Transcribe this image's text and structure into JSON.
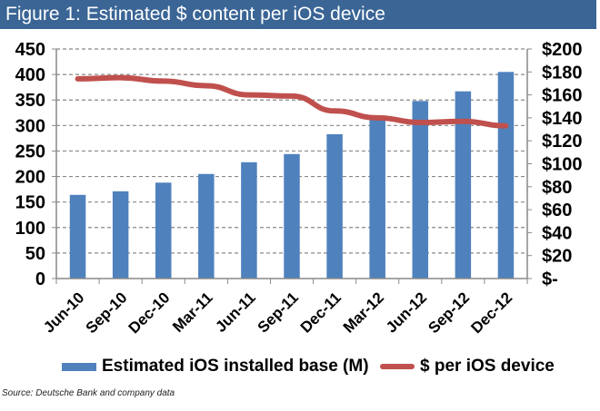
{
  "title": "Figure 1: Estimated $ content per iOS device",
  "source": "Source: Deutsche Bank and company data",
  "colors": {
    "title_bg": "#3a6595",
    "bar": "#4f81bd",
    "line": "#c0504d",
    "grid": "#888888"
  },
  "chart_data": {
    "type": "bar+line",
    "title": "Figure 1: Estimated $ content per iOS device",
    "categories": [
      "Jun-10",
      "Sep-10",
      "Dec-10",
      "Mar-11",
      "Jun-11",
      "Sep-11",
      "Dec-11",
      "Mar-12",
      "Jun-12",
      "Sep-12",
      "Dec-12"
    ],
    "series": [
      {
        "name": "Estimated iOS installed base (M)",
        "type": "bar",
        "axis": "left",
        "values": [
          164,
          171,
          188,
          205,
          228,
          244,
          283,
          315,
          348,
          367,
          405
        ]
      },
      {
        "name": "$ per iOS device",
        "type": "line",
        "axis": "right",
        "values": [
          174,
          175,
          172,
          168,
          160,
          159,
          146,
          140,
          136,
          137,
          133
        ]
      }
    ],
    "left_axis": {
      "ylim": [
        0,
        450
      ],
      "ticks": [
        "0",
        "50",
        "100",
        "150",
        "200",
        "250",
        "300",
        "350",
        "400",
        "450"
      ],
      "tick_values": [
        0,
        50,
        100,
        150,
        200,
        250,
        300,
        350,
        400,
        450
      ]
    },
    "right_axis": {
      "ylim": [
        0,
        200
      ],
      "ticks": [
        "$-",
        "$20",
        "$40",
        "$60",
        "$80",
        "$100",
        "$120",
        "$140",
        "$160",
        "$180",
        "$200"
      ],
      "tick_values": [
        0,
        20,
        40,
        60,
        80,
        100,
        120,
        140,
        160,
        180,
        200
      ]
    },
    "grid": true,
    "legend_position": "bottom"
  }
}
